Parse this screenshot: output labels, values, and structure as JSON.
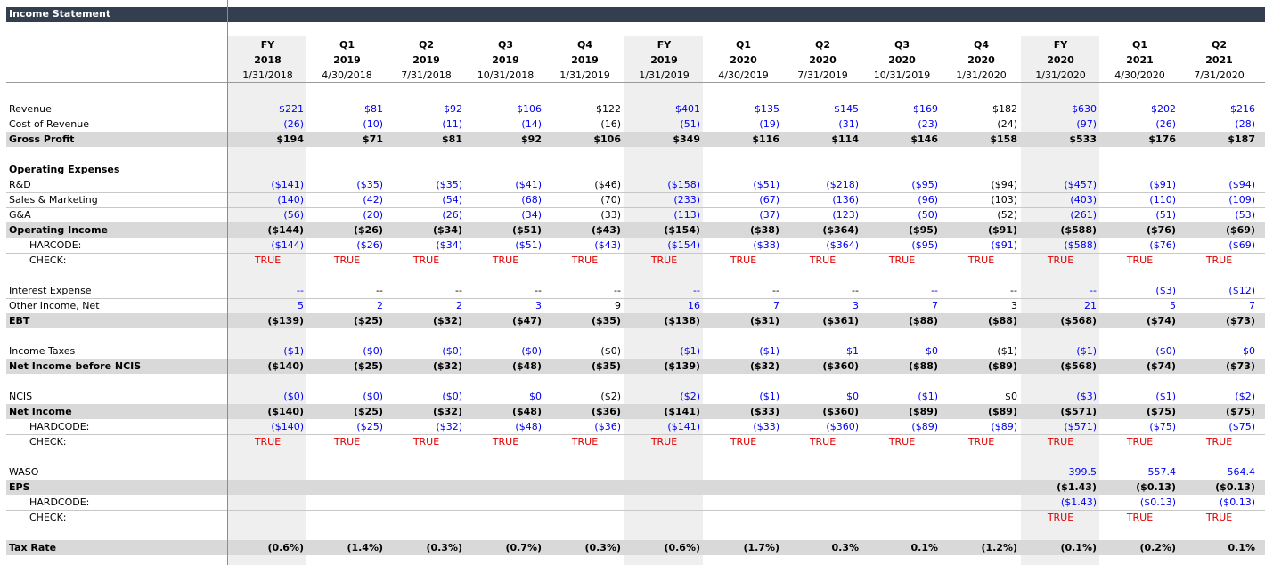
{
  "sheet": {
    "title": "Income Statement",
    "columns": [
      {
        "period": "FY",
        "year": "2018",
        "date": "1/31/2018",
        "shaded": true
      },
      {
        "period": "Q1",
        "year": "2019",
        "date": "4/30/2018",
        "shaded": false
      },
      {
        "period": "Q2",
        "year": "2019",
        "date": "7/31/2018",
        "shaded": false
      },
      {
        "period": "Q3",
        "year": "2019",
        "date": "10/31/2018",
        "shaded": false
      },
      {
        "period": "Q4",
        "year": "2019",
        "date": "1/31/2019",
        "shaded": false
      },
      {
        "period": "FY",
        "year": "2019",
        "date": "1/31/2019",
        "shaded": true
      },
      {
        "period": "Q1",
        "year": "2020",
        "date": "4/30/2019",
        "shaded": false
      },
      {
        "period": "Q2",
        "year": "2020",
        "date": "7/31/2019",
        "shaded": false
      },
      {
        "period": "Q3",
        "year": "2020",
        "date": "10/31/2019",
        "shaded": false
      },
      {
        "period": "Q4",
        "year": "2020",
        "date": "1/31/2020",
        "shaded": false
      },
      {
        "period": "FY",
        "year": "2020",
        "date": "1/31/2020",
        "shaded": true
      },
      {
        "period": "Q1",
        "year": "2021",
        "date": "4/30/2020",
        "shaded": false
      },
      {
        "period": "Q2",
        "year": "2021",
        "date": "7/31/2020",
        "shaded": false
      }
    ],
    "rows": [
      {
        "label": "Revenue",
        "style": "line",
        "values": [
          "$221",
          "$81",
          "$92",
          "$106",
          "$122",
          "$401",
          "$135",
          "$145",
          "$169",
          "$182",
          "$630",
          "$202",
          "$216"
        ],
        "colors": [
          "b",
          "b",
          "b",
          "b",
          "k",
          "b",
          "b",
          "b",
          "b",
          "k",
          "b",
          "b",
          "b"
        ]
      },
      {
        "label": "Cost of Revenue",
        "style": "plain",
        "values": [
          "(26)",
          "(10)",
          "(11)",
          "(14)",
          "(16)",
          "(51)",
          "(19)",
          "(31)",
          "(23)",
          "(24)",
          "(97)",
          "(26)",
          "(28)"
        ],
        "colors": [
          "b",
          "b",
          "b",
          "b",
          "k",
          "b",
          "b",
          "b",
          "b",
          "k",
          "b",
          "b",
          "b"
        ]
      },
      {
        "label": "Gross Profit",
        "style": "total",
        "values": [
          "$194",
          "$71",
          "$81",
          "$92",
          "$106",
          "$349",
          "$116",
          "$114",
          "$146",
          "$158",
          "$533",
          "$176",
          "$187"
        ],
        "colors": [
          "k",
          "k",
          "k",
          "k",
          "k",
          "k",
          "k",
          "k",
          "k",
          "k",
          "k",
          "k",
          "k"
        ]
      },
      {
        "label": "",
        "style": "blank"
      },
      {
        "label": "Operating Expenses",
        "style": "section"
      },
      {
        "label": "R&D",
        "style": "line",
        "values": [
          "($141)",
          "($35)",
          "($35)",
          "($41)",
          "($46)",
          "($158)",
          "($51)",
          "($218)",
          "($95)",
          "($94)",
          "($457)",
          "($91)",
          "($94)"
        ],
        "colors": [
          "b",
          "b",
          "b",
          "b",
          "k",
          "b",
          "b",
          "b",
          "b",
          "k",
          "b",
          "b",
          "b"
        ]
      },
      {
        "label": "Sales & Marketing",
        "style": "line",
        "values": [
          "(140)",
          "(42)",
          "(54)",
          "(68)",
          "(70)",
          "(233)",
          "(67)",
          "(136)",
          "(96)",
          "(103)",
          "(403)",
          "(110)",
          "(109)"
        ],
        "colors": [
          "b",
          "b",
          "b",
          "b",
          "k",
          "b",
          "b",
          "b",
          "b",
          "k",
          "b",
          "b",
          "b"
        ]
      },
      {
        "label": "G&A",
        "style": "plain",
        "values": [
          "(56)",
          "(20)",
          "(26)",
          "(34)",
          "(33)",
          "(113)",
          "(37)",
          "(123)",
          "(50)",
          "(52)",
          "(261)",
          "(51)",
          "(53)"
        ],
        "colors": [
          "b",
          "b",
          "b",
          "b",
          "k",
          "b",
          "b",
          "b",
          "b",
          "k",
          "b",
          "b",
          "b"
        ]
      },
      {
        "label": "Operating Income",
        "style": "total",
        "values": [
          "($144)",
          "($26)",
          "($34)",
          "($51)",
          "($43)",
          "($154)",
          "($38)",
          "($364)",
          "($95)",
          "($91)",
          "($588)",
          "($76)",
          "($69)"
        ],
        "colors": [
          "k",
          "k",
          "k",
          "k",
          "k",
          "k",
          "k",
          "k",
          "k",
          "k",
          "k",
          "k",
          "k"
        ]
      },
      {
        "label": "HARCODE:",
        "style": "indent-line",
        "values": [
          "($144)",
          "($26)",
          "($34)",
          "($51)",
          "($43)",
          "($154)",
          "($38)",
          "($364)",
          "($95)",
          "($91)",
          "($588)",
          "($76)",
          "($69)"
        ],
        "colors": [
          "b",
          "b",
          "b",
          "b",
          "b",
          "b",
          "b",
          "b",
          "b",
          "b",
          "b",
          "b",
          "b"
        ]
      },
      {
        "label": "CHECK:",
        "style": "check",
        "values": [
          "TRUE",
          "TRUE",
          "TRUE",
          "TRUE",
          "TRUE",
          "TRUE",
          "TRUE",
          "TRUE",
          "TRUE",
          "TRUE",
          "TRUE",
          "TRUE",
          "TRUE"
        ]
      },
      {
        "label": "",
        "style": "blank"
      },
      {
        "label": "Interest Expense",
        "style": "line",
        "values": [
          "--",
          "--",
          "--",
          "--",
          "--",
          "--",
          "--",
          "--",
          "--",
          "--",
          "--",
          "($3)",
          "($12)"
        ],
        "colors": [
          "b",
          "k",
          "k",
          "k",
          "k",
          "b",
          "k",
          "k",
          "b",
          "k",
          "b",
          "b",
          "b"
        ]
      },
      {
        "label": "Other Income, Net",
        "style": "plain",
        "values": [
          "5",
          "2",
          "2",
          "3",
          "9",
          "16",
          "7",
          "3",
          "7",
          "3",
          "21",
          "5",
          "7"
        ],
        "colors": [
          "b",
          "b",
          "b",
          "b",
          "k",
          "b",
          "b",
          "b",
          "b",
          "k",
          "b",
          "b",
          "b"
        ]
      },
      {
        "label": "EBT",
        "style": "total",
        "values": [
          "($139)",
          "($25)",
          "($32)",
          "($47)",
          "($35)",
          "($138)",
          "($31)",
          "($361)",
          "($88)",
          "($88)",
          "($568)",
          "($74)",
          "($73)"
        ],
        "colors": [
          "k",
          "k",
          "k",
          "k",
          "k",
          "k",
          "k",
          "k",
          "k",
          "k",
          "k",
          "k",
          "k"
        ]
      },
      {
        "label": "",
        "style": "blank"
      },
      {
        "label": "Income Taxes",
        "style": "plain",
        "values": [
          "($1)",
          "($0)",
          "($0)",
          "($0)",
          "($0)",
          "($1)",
          "($1)",
          "$1",
          "$0",
          "($1)",
          "($1)",
          "($0)",
          "$0"
        ],
        "colors": [
          "b",
          "b",
          "b",
          "b",
          "k",
          "b",
          "b",
          "b",
          "b",
          "k",
          "b",
          "b",
          "b"
        ]
      },
      {
        "label": "Net Income before NCIS",
        "style": "total",
        "values": [
          "($140)",
          "($25)",
          "($32)",
          "($48)",
          "($35)",
          "($139)",
          "($32)",
          "($360)",
          "($88)",
          "($89)",
          "($568)",
          "($74)",
          "($73)"
        ],
        "colors": [
          "k",
          "k",
          "k",
          "k",
          "k",
          "k",
          "k",
          "k",
          "k",
          "k",
          "k",
          "k",
          "k"
        ]
      },
      {
        "label": "",
        "style": "blank"
      },
      {
        "label": "NCIS",
        "style": "plain",
        "values": [
          "($0)",
          "($0)",
          "($0)",
          "$0",
          "($2)",
          "($2)",
          "($1)",
          "$0",
          "($1)",
          "$0",
          "($3)",
          "($1)",
          "($2)"
        ],
        "colors": [
          "b",
          "b",
          "b",
          "b",
          "k",
          "b",
          "b",
          "b",
          "b",
          "k",
          "b",
          "b",
          "b"
        ]
      },
      {
        "label": "Net Income",
        "style": "total",
        "values": [
          "($140)",
          "($25)",
          "($32)",
          "($48)",
          "($36)",
          "($141)",
          "($33)",
          "($360)",
          "($89)",
          "($89)",
          "($571)",
          "($75)",
          "($75)"
        ],
        "colors": [
          "k",
          "k",
          "k",
          "k",
          "k",
          "k",
          "k",
          "k",
          "k",
          "k",
          "k",
          "k",
          "k"
        ]
      },
      {
        "label": "HARDCODE:",
        "style": "indent-line",
        "values": [
          "($140)",
          "($25)",
          "($32)",
          "($48)",
          "($36)",
          "($141)",
          "($33)",
          "($360)",
          "($89)",
          "($89)",
          "($571)",
          "($75)",
          "($75)"
        ],
        "colors": [
          "b",
          "b",
          "b",
          "b",
          "b",
          "b",
          "b",
          "b",
          "b",
          "b",
          "b",
          "b",
          "b"
        ]
      },
      {
        "label": "CHECK:",
        "style": "check",
        "values": [
          "TRUE",
          "TRUE",
          "TRUE",
          "TRUE",
          "TRUE",
          "TRUE",
          "TRUE",
          "TRUE",
          "TRUE",
          "TRUE",
          "TRUE",
          "TRUE",
          "TRUE"
        ]
      },
      {
        "label": "",
        "style": "blank"
      },
      {
        "label": "WASO",
        "style": "plain",
        "values": [
          "",
          "",
          "",
          "",
          "",
          "",
          "",
          "",
          "",
          "",
          "399.5",
          "557.4",
          "564.4"
        ],
        "colors": [
          "b",
          "b",
          "b",
          "b",
          "b",
          "b",
          "b",
          "b",
          "b",
          "b",
          "b",
          "b",
          "b"
        ]
      },
      {
        "label": "EPS",
        "style": "total",
        "values": [
          "",
          "",
          "",
          "",
          "",
          "",
          "",
          "",
          "",
          "",
          "($1.43)",
          "($0.13)",
          "($0.13)"
        ],
        "colors": [
          "k",
          "k",
          "k",
          "k",
          "k",
          "k",
          "k",
          "k",
          "k",
          "k",
          "k",
          "k",
          "k"
        ]
      },
      {
        "label": "HARDCODE:",
        "style": "indent-line",
        "values": [
          "",
          "",
          "",
          "",
          "",
          "",
          "",
          "",
          "",
          "",
          "($1.43)",
          "($0.13)",
          "($0.13)"
        ],
        "colors": [
          "b",
          "b",
          "b",
          "b",
          "b",
          "b",
          "b",
          "b",
          "b",
          "b",
          "b",
          "b",
          "b"
        ]
      },
      {
        "label": "CHECK:",
        "style": "check",
        "values": [
          "",
          "",
          "",
          "",
          "",
          "",
          "",
          "",
          "",
          "",
          "TRUE",
          "TRUE",
          "TRUE"
        ]
      },
      {
        "label": "",
        "style": "blank"
      },
      {
        "label": "Tax Rate",
        "style": "total",
        "values": [
          "(0.6%)",
          "(1.4%)",
          "(0.3%)",
          "(0.7%)",
          "(0.3%)",
          "(0.6%)",
          "(1.7%)",
          "0.3%",
          "0.1%",
          "(1.2%)",
          "(0.1%)",
          "(0.2%)",
          "0.1%"
        ],
        "colors": [
          "k",
          "k",
          "k",
          "k",
          "k",
          "k",
          "k",
          "k",
          "k",
          "k",
          "k",
          "k",
          "k"
        ]
      }
    ],
    "colors": {
      "title_bar": "#333f4f",
      "input_blue": "#0000ee",
      "check_red": "#e00000",
      "total_shade": "#d9d9d9",
      "fy_shade": "#efefef"
    }
  }
}
